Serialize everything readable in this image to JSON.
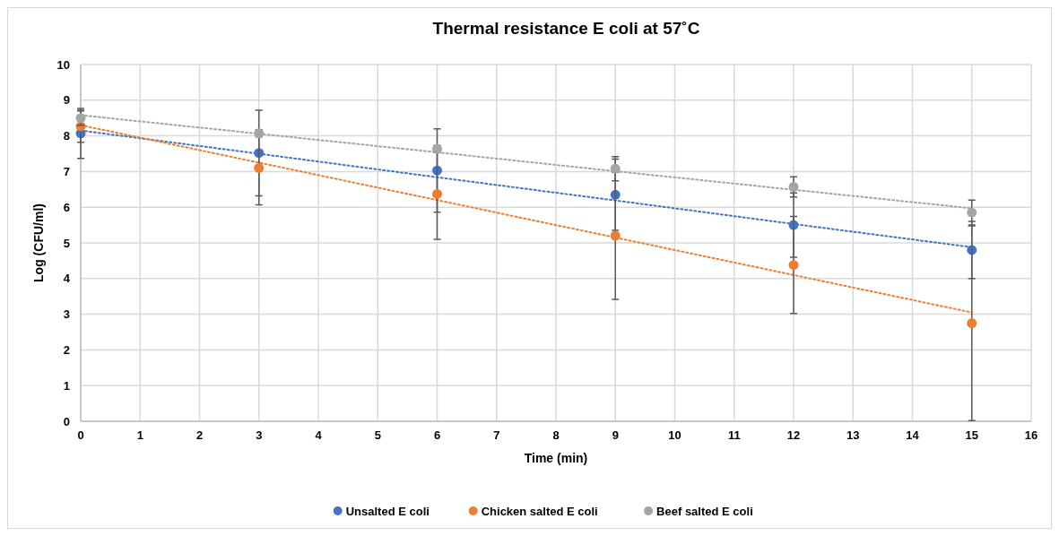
{
  "chart_data": {
    "type": "scatter",
    "title": "Thermal resistance E coli at 57˚C",
    "xlabel": "Time (min)",
    "ylabel": "Log (CFU/ml)",
    "x": [
      0,
      3,
      6,
      9,
      12,
      15
    ],
    "xlim": [
      0,
      16
    ],
    "xticks": [
      0,
      1,
      2,
      3,
      4,
      5,
      6,
      7,
      8,
      9,
      10,
      11,
      12,
      13,
      14,
      15,
      16
    ],
    "ylim": [
      0,
      10
    ],
    "yticks": [
      0,
      1,
      2,
      3,
      4,
      5,
      6,
      7,
      8,
      9,
      10
    ],
    "grid": true,
    "legend": "bottom",
    "marker": "circle",
    "series": [
      {
        "name": "Unsalted E coli",
        "color": "#4472c4",
        "values": [
          8.07,
          7.52,
          7.03,
          6.35,
          5.5,
          4.8
        ],
        "errors": [
          0.7,
          1.2,
          1.17,
          1.0,
          0.9,
          0.8
        ]
      },
      {
        "name": "Chicken salted E coli",
        "color": "#ed7d31",
        "values": [
          8.27,
          7.1,
          6.37,
          5.2,
          4.38,
          2.75
        ],
        "errors": [
          0.45,
          1.03,
          1.27,
          1.78,
          1.36,
          2.73
        ]
      },
      {
        "name": "Beef salted E coli",
        "color": "#a5a5a5",
        "values": [
          8.5,
          8.07,
          7.63,
          7.08,
          6.57,
          5.85
        ],
        "errors": [
          0.2,
          0.1,
          0.1,
          0.34,
          0.28,
          0.35
        ]
      },
      {
        "type": "line",
        "color": "#4472c4",
        "values": [
          8.15,
          7.5,
          6.84,
          6.19,
          5.53,
          4.88
        ],
        "marker": "none",
        "line_style": "dotted"
      },
      {
        "type": "line",
        "color": "#ed7d31",
        "values": [
          8.3,
          7.25,
          6.2,
          5.15,
          4.1,
          3.05
        ],
        "marker": "none",
        "line_style": "dotted"
      },
      {
        "type": "line",
        "color": "#a5a5a5",
        "values": [
          8.58,
          8.06,
          7.54,
          7.01,
          6.49,
          5.97
        ],
        "marker": "none",
        "line_style": "dotted"
      }
    ]
  }
}
